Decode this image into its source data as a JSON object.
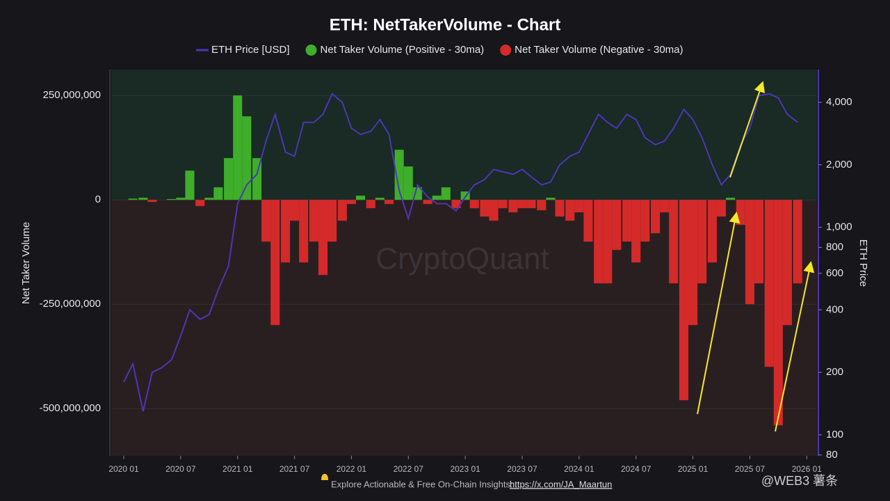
{
  "chart_data": {
    "type": "bar_line",
    "title": "ETH: NetTakerVolume - Chart",
    "ylabel": "Net Taker Volume",
    "y2label": "ETH Price",
    "watermark": "CryptoQuant",
    "footer": "Explore Actionable & Free On-Chain Insights:",
    "footer_link": "https://x.com/JA_Maartun",
    "corner_mark": "@WEB3 薯条",
    "legend": "top",
    "y2log": true,
    "x": [
      2020,
      2020.08,
      2020.17,
      2020.25,
      2020.33,
      2020.42,
      2020.5,
      2020.58,
      2020.67,
      2020.75,
      2020.83,
      2020.92,
      2021,
      2021.08,
      2021.17,
      2021.25,
      2021.33,
      2021.42,
      2021.5,
      2021.58,
      2021.67,
      2021.75,
      2021.83,
      2021.92,
      2022,
      2022.08,
      2022.17,
      2022.25,
      2022.33,
      2022.42,
      2022.5,
      2022.58,
      2022.67,
      2022.75,
      2022.83,
      2022.92,
      2023,
      2023.08,
      2023.17,
      2023.25,
      2023.33,
      2023.42,
      2023.5,
      2023.58,
      2023.67,
      2023.75,
      2023.83,
      2023.92,
      2024,
      2024.08,
      2024.17,
      2024.25,
      2024.33,
      2024.42,
      2024.5,
      2024.58,
      2024.67,
      2024.75,
      2024.83,
      2024.92,
      2025,
      2025.08,
      2025.17,
      2025.25,
      2025.33,
      2025.42,
      2025.5,
      2025.58,
      2025.67,
      2025.75,
      2025.83,
      2025.92
    ],
    "series": [
      {
        "name": "Net Taker Volume (Positive - 30ma)",
        "color": "#3fae2a",
        "values": [
          null,
          3000000.0,
          5000000.0,
          null,
          null,
          2000000.0,
          5000000.0,
          70000000.0,
          null,
          5000000.0,
          30000000.0,
          100000000.0,
          250000000.0,
          200000000.0,
          100000000.0,
          null,
          null,
          null,
          null,
          null,
          null,
          null,
          null,
          null,
          null,
          10000000.0,
          null,
          5000000.0,
          null,
          120000000.0,
          80000000.0,
          30000000.0,
          null,
          10000000.0,
          30000000.0,
          null,
          20000000.0,
          null,
          null,
          null,
          null,
          null,
          null,
          null,
          null,
          5000000.0,
          null,
          null,
          null,
          null,
          null,
          null,
          null,
          null,
          null,
          null,
          null,
          null,
          null,
          null,
          null,
          null,
          null,
          null,
          5000000.0,
          null,
          null,
          null,
          null,
          null,
          null,
          null
        ]
      },
      {
        "name": "Net Taker Volume (Negative - 30ma)",
        "color": "#d42a2a",
        "values": [
          null,
          null,
          null,
          -5000000.0,
          null,
          null,
          null,
          null,
          -15000000.0,
          null,
          null,
          null,
          null,
          null,
          null,
          -100000000.0,
          -300000000.0,
          -150000000.0,
          -50000000.0,
          -150000000.0,
          -100000000.0,
          -180000000.0,
          -100000000.0,
          -50000000.0,
          -10000000.0,
          null,
          -20000000.0,
          null,
          -10000000.0,
          null,
          null,
          null,
          -10000000.0,
          null,
          null,
          -20000000.0,
          null,
          -20000000.0,
          -40000000.0,
          -50000000.0,
          -20000000.0,
          -30000000.0,
          -20000000.0,
          -20000000.0,
          -25000000.0,
          null,
          -40000000.0,
          -50000000.0,
          -30000000.0,
          -100000000.0,
          -200000000.0,
          -200000000.0,
          -120000000.0,
          -100000000.0,
          -150000000.0,
          -100000000.0,
          -80000000.0,
          -30000000.0,
          -200000000.0,
          -480000000.0,
          -300000000.0,
          -200000000.0,
          -150000000.0,
          -40000000.0,
          null,
          -60000000.0,
          -250000000.0,
          -200000000.0,
          -400000000.0,
          -540000000.0,
          -300000000.0,
          -200000000.0
        ]
      },
      {
        "name": "ETH Price [USD]",
        "color": "#4b36b8",
        "axis": "y2",
        "values": [
          180,
          220,
          130,
          200,
          210,
          230,
          300,
          400,
          360,
          380,
          500,
          650,
          1300,
          1600,
          1800,
          2600,
          3500,
          2300,
          2200,
          3200,
          3200,
          3500,
          4400,
          4000,
          3000,
          2800,
          2900,
          3300,
          2800,
          1500,
          1100,
          1600,
          1400,
          1300,
          1300,
          1200,
          1400,
          1600,
          1700,
          1900,
          1850,
          1800,
          1900,
          1750,
          1600,
          1650,
          2000,
          2200,
          2300,
          2800,
          3500,
          3200,
          3000,
          3500,
          3300,
          2700,
          2500,
          2600,
          3000,
          3700,
          3300,
          2700,
          2000,
          1600,
          1800,
          2500,
          3000,
          4300,
          4400,
          4200,
          3500,
          3200
        ]
      }
    ],
    "xlim": [
      2019.89,
      2026.09
    ],
    "xticks": [
      {
        "value": 2020,
        "label": "2020 01"
      },
      {
        "value": 2020.5,
        "label": "2020 07"
      },
      {
        "value": 2021,
        "label": "2021 01"
      },
      {
        "value": 2021.5,
        "label": "2021 07"
      },
      {
        "value": 2022,
        "label": "2022 01"
      },
      {
        "value": 2022.5,
        "label": "2022 07"
      },
      {
        "value": 2023,
        "label": "2023 01"
      },
      {
        "value": 2023.5,
        "label": "2023 07"
      },
      {
        "value": 2024,
        "label": "2024 01"
      },
      {
        "value": 2024.5,
        "label": "2024 07"
      },
      {
        "value": 2025,
        "label": "2025 01"
      },
      {
        "value": 2025.5,
        "label": "2025 07"
      },
      {
        "value": 2026,
        "label": "2026 01"
      }
    ],
    "ylim": [
      -613000000,
      312000000
    ],
    "yticks": [
      {
        "value": -500000000,
        "label": "-500,000,000"
      },
      {
        "value": -250000000,
        "label": "-250,000,000"
      },
      0,
      {
        "value": 250000000,
        "label": "250,000,000"
      }
    ],
    "y2lim": [
      79.3,
      5750
    ],
    "y2ticks": [
      80,
      100,
      200,
      400,
      600,
      800,
      {
        "value": 1000,
        "label": "1,000"
      },
      {
        "value": 2000,
        "label": "2,000"
      },
      {
        "value": 4000,
        "label": "4,000"
      }
    ]
  }
}
